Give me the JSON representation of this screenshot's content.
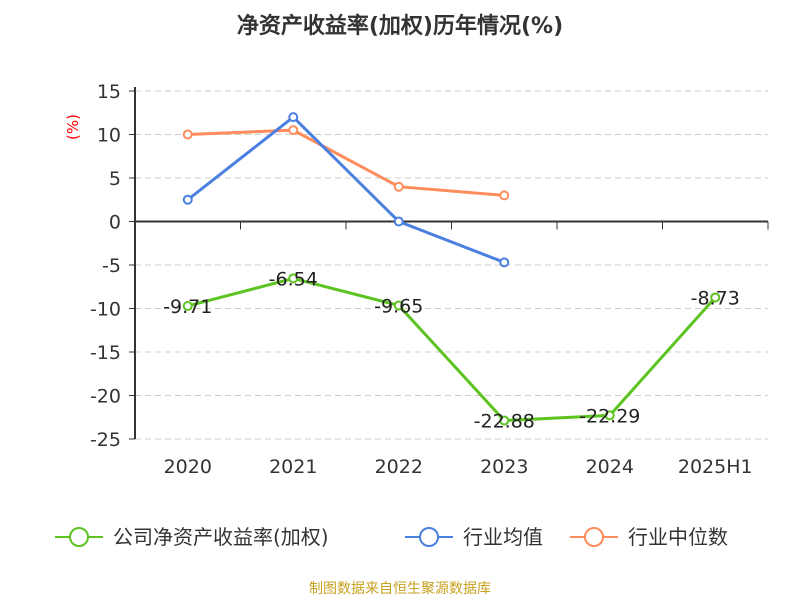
{
  "chart_data": {
    "type": "line",
    "title": "净资产收益率(加权)历年情况(%)",
    "ylabel": "(%)",
    "categories": [
      "2020",
      "2021",
      "2022",
      "2023",
      "2024",
      "2025H1"
    ],
    "ylim": [
      -25,
      15
    ],
    "yticks": [
      15,
      10,
      5,
      0,
      -5,
      -10,
      -15,
      -20,
      -25
    ],
    "grid": true,
    "legend_position": "bottom",
    "series": [
      {
        "name": "公司净资产收益率(加权)",
        "color": "#5cc320",
        "values": [
          -9.71,
          -6.54,
          -9.65,
          -22.88,
          -22.29,
          -8.73
        ],
        "labels": [
          "-9.71",
          "-6.54",
          "-9.65",
          "-22.88",
          "-22.29",
          "-8.73"
        ]
      },
      {
        "name": "行业均值",
        "color": "#4a7fe0",
        "values": [
          2.5,
          12,
          0,
          -4.7,
          null,
          null
        ]
      },
      {
        "name": "行业中位数",
        "color": "#ff8c5a",
        "values": [
          10,
          10.5,
          4,
          3,
          null,
          null
        ]
      }
    ]
  },
  "source": "制图数据来自恒生聚源数据库"
}
